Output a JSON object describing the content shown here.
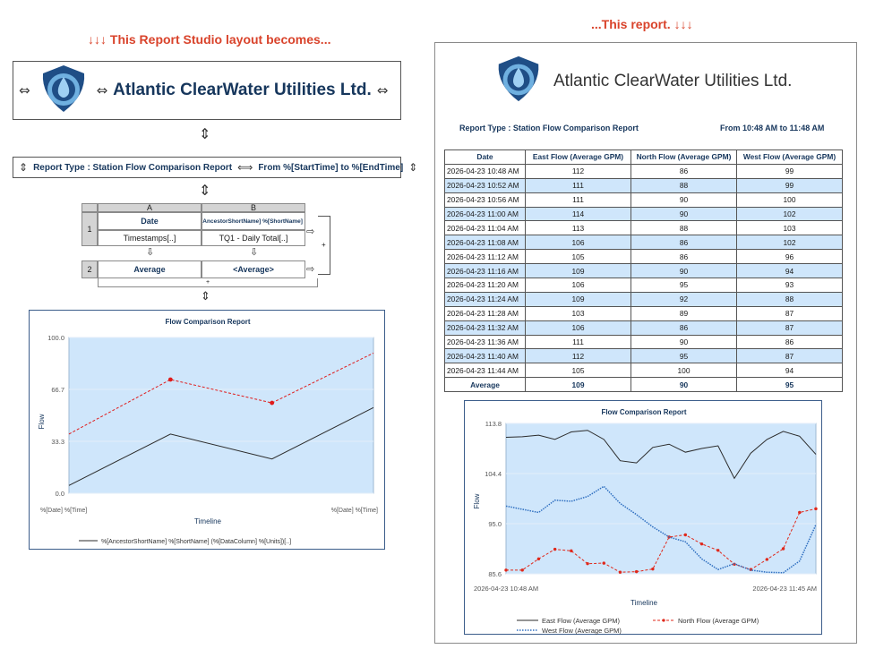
{
  "captions": {
    "left": "↓↓↓ This Report Studio layout becomes...",
    "right": "...This report. ↓↓↓"
  },
  "company": {
    "name": "Atlantic ClearWater Utilities Ltd."
  },
  "layout": {
    "report_type": "Report Type : Station Flow Comparison Report",
    "time_range": "From %[StartTime] to %[EndTime]",
    "crosstab": {
      "col_a": "A",
      "col_b": "B",
      "row1": "1",
      "row2": "2",
      "date_header": "Date",
      "data_header": "%[AncestorShortName] %[ShortName] (%",
      "timestamps": "Timestamps[..]",
      "daily_total": "TQ1 - Daily Total[..]",
      "average_label": "Average",
      "average_value": "<Average>",
      "plus": "+"
    },
    "chart": {
      "title": "Flow Comparison Report",
      "ylabel": "Flow",
      "xlabel": "Timeline",
      "x_start": "%[Date] %[Time]",
      "x_end": "%[Date] %[Time]",
      "legend": "%[AncestorShortName] %[ShortName]  (%[DataColumn]  %[Units])[..]"
    }
  },
  "report": {
    "report_type": "Report Type : Station Flow Comparison Report",
    "time_range": "From 10:48 AM to 11:48 AM",
    "table": {
      "headers": [
        "Date",
        "East Flow  (Average  GPM)",
        "North Flow  (Average  GPM)",
        "West Flow  (Average  GPM)"
      ],
      "rows": [
        [
          "2026-04-23 10:48 AM",
          "112",
          "86",
          "99"
        ],
        [
          "2026-04-23 10:52 AM",
          "111",
          "88",
          "99"
        ],
        [
          "2026-04-23 10:56 AM",
          "111",
          "90",
          "100"
        ],
        [
          "2026-04-23 11:00 AM",
          "114",
          "90",
          "102"
        ],
        [
          "2026-04-23 11:04 AM",
          "113",
          "88",
          "103"
        ],
        [
          "2026-04-23 11:08 AM",
          "106",
          "86",
          "102"
        ],
        [
          "2026-04-23 11:12 AM",
          "105",
          "86",
          "96"
        ],
        [
          "2026-04-23 11:16 AM",
          "109",
          "90",
          "94"
        ],
        [
          "2026-04-23 11:20 AM",
          "106",
          "95",
          "93"
        ],
        [
          "2026-04-23 11:24 AM",
          "109",
          "92",
          "88"
        ],
        [
          "2026-04-23 11:28 AM",
          "103",
          "89",
          "87"
        ],
        [
          "2026-04-23 11:32 AM",
          "106",
          "86",
          "87"
        ],
        [
          "2026-04-23 11:36 AM",
          "111",
          "90",
          "86"
        ],
        [
          "2026-04-23 11:40 AM",
          "112",
          "95",
          "87"
        ],
        [
          "2026-04-23 11:44 AM",
          "105",
          "100",
          "94"
        ]
      ],
      "average": [
        "Average",
        "109",
        "90",
        "95"
      ]
    }
  },
  "chart_data": [
    {
      "type": "line",
      "title": "Flow Comparison Report",
      "xlabel": "Timeline",
      "ylabel": "Flow",
      "ylim": [
        0,
        100
      ],
      "yticks": [
        "0.0",
        "33.3",
        "66.7",
        "100.0"
      ],
      "x": [
        0,
        1,
        2,
        3
      ],
      "x_tick_labels": [
        "%[Date] %[Time]",
        "%[Date] %[Time]"
      ],
      "series": [
        {
          "name": "%[AncestorShortName] %[ShortName]  (%[DataColumn]  %[Units])[..]",
          "style": "solid",
          "color": "#2b2b2b",
          "values": [
            5,
            38,
            22,
            55
          ]
        },
        {
          "style": "dashed",
          "color": "#e01b1b",
          "values": [
            38,
            73,
            58,
            90
          ]
        }
      ],
      "fill": "#cfe6fb",
      "grid": true,
      "legend": "bottom"
    },
    {
      "type": "line",
      "title": "Flow Comparison Report",
      "xlabel": "Timeline",
      "ylabel": "Flow",
      "ylim": [
        85.6,
        113.8
      ],
      "yticks": [
        "85.6",
        "95.0",
        "104.4",
        "113.8"
      ],
      "x_tick_labels": [
        "2026-04-23 10:48 AM",
        "2026-04-23 11:45 AM"
      ],
      "grid": true,
      "legend": "bottom",
      "fill": "#cfe6fb",
      "series": [
        {
          "name": "East Flow (Average GPM)",
          "style": "solid",
          "color": "#2b2b2b",
          "values": [
            111.2,
            111.3,
            111.6,
            110.8,
            112.2,
            112.5,
            110.8,
            106.8,
            106.4,
            109.3,
            109.9,
            108.4,
            109.1,
            109.6,
            103.5,
            108.2,
            110.8,
            112.3,
            111.4,
            108.0
          ]
        },
        {
          "name": "North Flow (Average GPM)",
          "style": "dash-marker",
          "color": "#e0281b",
          "values": [
            86.3,
            86.3,
            88.4,
            90.2,
            89.9,
            87.5,
            87.6,
            85.9,
            86.0,
            86.5,
            92.5,
            92.9,
            91.2,
            90.0,
            87.4,
            86.4,
            88.3,
            90.3,
            97.1,
            97.8
          ]
        },
        {
          "name": "West Flow (Average GPM)",
          "style": "dotted",
          "color": "#2f6fc0",
          "values": [
            98.3,
            97.7,
            97.1,
            99.4,
            99.2,
            100.1,
            102.0,
            98.8,
            96.7,
            94.4,
            92.5,
            91.6,
            88.4,
            86.4,
            87.5,
            86.3,
            85.9,
            85.8,
            88.0,
            94.8
          ]
        }
      ]
    }
  ]
}
